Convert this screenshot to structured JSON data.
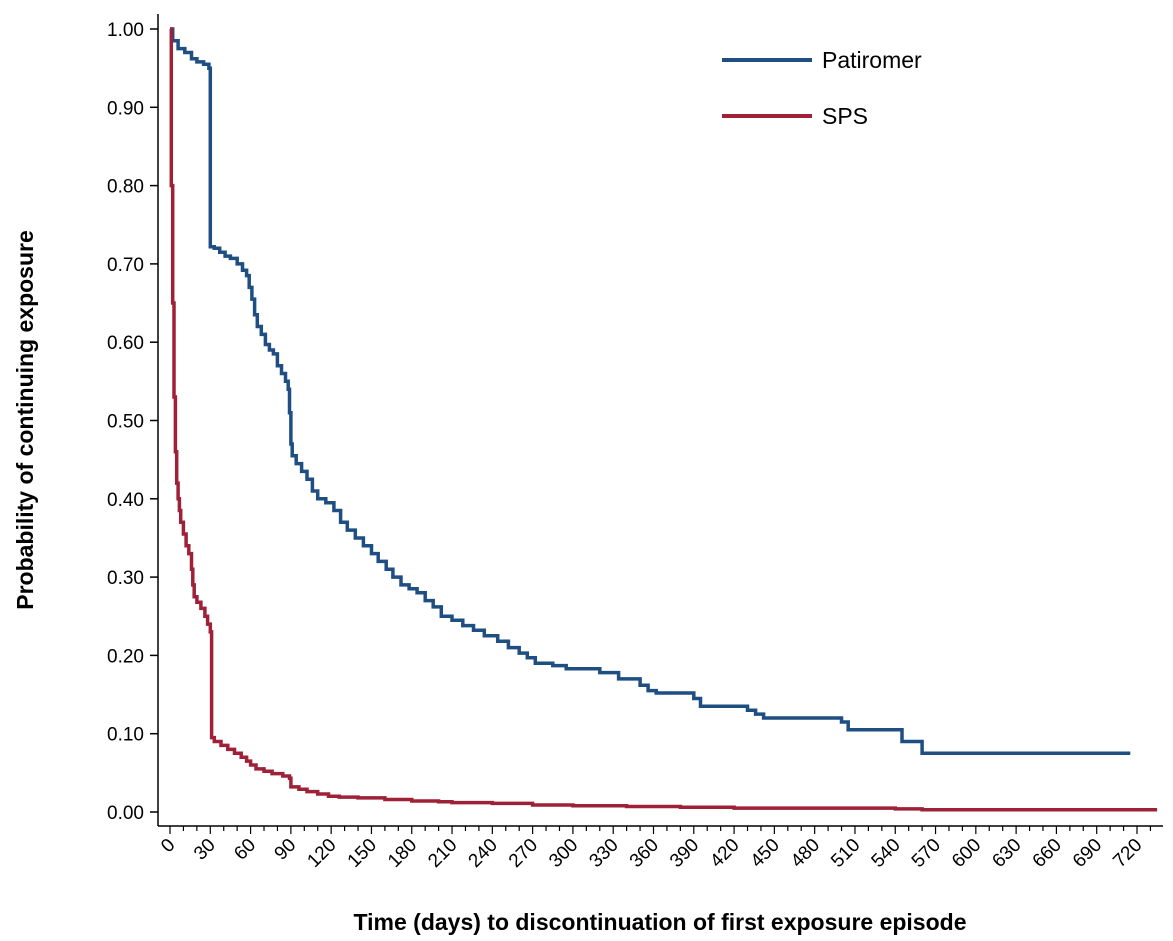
{
  "chart_data": {
    "type": "line",
    "title": "",
    "xlabel": "Time (days) to discontinuation of first exposure episode",
    "ylabel": "Probability of continuing exposure",
    "xlim": [
      -10,
      735
    ],
    "ylim": [
      0,
      1
    ],
    "x_ticks": [
      0,
      30,
      60,
      90,
      120,
      150,
      180,
      210,
      240,
      270,
      300,
      330,
      360,
      390,
      420,
      450,
      480,
      510,
      540,
      570,
      600,
      630,
      660,
      690,
      720
    ],
    "x_tick_labels": [
      "0",
      "30",
      "60",
      "90",
      "120",
      "150",
      "180",
      "210",
      "240",
      "270",
      "300",
      "330",
      "360",
      "390",
      "420",
      "450",
      "480",
      "510",
      "540",
      "570",
      "600",
      "630",
      "660",
      "690",
      "720"
    ],
    "y_ticks": [
      0,
      0.1,
      0.2,
      0.3,
      0.4,
      0.5,
      0.6,
      0.7,
      0.8,
      0.9,
      1.0
    ],
    "y_tick_labels": [
      "0.00",
      "0.10",
      "0.20",
      "0.30",
      "0.40",
      "0.50",
      "0.60",
      "0.70",
      "0.80",
      "0.90",
      "1.00"
    ],
    "grid": false,
    "legend_position": "top-right",
    "series": [
      {
        "name": "Patiromer",
        "color": "#1f4e82",
        "step": true,
        "points": [
          [
            0,
            1.0
          ],
          [
            2,
            0.985
          ],
          [
            6,
            0.975
          ],
          [
            11,
            0.97
          ],
          [
            16,
            0.962
          ],
          [
            20,
            0.958
          ],
          [
            25,
            0.955
          ],
          [
            29,
            0.95
          ],
          [
            30,
            0.722
          ],
          [
            33,
            0.72
          ],
          [
            37,
            0.715
          ],
          [
            41,
            0.71
          ],
          [
            45,
            0.707
          ],
          [
            50,
            0.7
          ],
          [
            54,
            0.692
          ],
          [
            57,
            0.685
          ],
          [
            59,
            0.67
          ],
          [
            61,
            0.655
          ],
          [
            63,
            0.635
          ],
          [
            65,
            0.62
          ],
          [
            68,
            0.61
          ],
          [
            71,
            0.597
          ],
          [
            74,
            0.59
          ],
          [
            77,
            0.585
          ],
          [
            80,
            0.57
          ],
          [
            83,
            0.56
          ],
          [
            86,
            0.55
          ],
          [
            88,
            0.54
          ],
          [
            89,
            0.51
          ],
          [
            90,
            0.47
          ],
          [
            91,
            0.455
          ],
          [
            94,
            0.445
          ],
          [
            98,
            0.435
          ],
          [
            102,
            0.425
          ],
          [
            106,
            0.41
          ],
          [
            110,
            0.4
          ],
          [
            116,
            0.395
          ],
          [
            122,
            0.385
          ],
          [
            127,
            0.37
          ],
          [
            132,
            0.36
          ],
          [
            138,
            0.35
          ],
          [
            144,
            0.34
          ],
          [
            150,
            0.33
          ],
          [
            155,
            0.32
          ],
          [
            161,
            0.31
          ],
          [
            166,
            0.3
          ],
          [
            172,
            0.29
          ],
          [
            178,
            0.285
          ],
          [
            184,
            0.28
          ],
          [
            190,
            0.27
          ],
          [
            196,
            0.262
          ],
          [
            202,
            0.25
          ],
          [
            210,
            0.245
          ],
          [
            218,
            0.238
          ],
          [
            226,
            0.232
          ],
          [
            234,
            0.225
          ],
          [
            244,
            0.218
          ],
          [
            252,
            0.21
          ],
          [
            260,
            0.203
          ],
          [
            266,
            0.197
          ],
          [
            272,
            0.19
          ],
          [
            285,
            0.187
          ],
          [
            295,
            0.183
          ],
          [
            320,
            0.178
          ],
          [
            334,
            0.17
          ],
          [
            350,
            0.162
          ],
          [
            356,
            0.155
          ],
          [
            362,
            0.152
          ],
          [
            390,
            0.145
          ],
          [
            395,
            0.135
          ],
          [
            430,
            0.13
          ],
          [
            436,
            0.125
          ],
          [
            442,
            0.12
          ],
          [
            500,
            0.115
          ],
          [
            505,
            0.105
          ],
          [
            545,
            0.09
          ],
          [
            560,
            0.075
          ],
          [
            715,
            0.075
          ]
        ]
      },
      {
        "name": "SPS",
        "color": "#9e2138",
        "step": true,
        "points": [
          [
            0,
            1.0
          ],
          [
            1,
            0.8
          ],
          [
            2,
            0.65
          ],
          [
            3,
            0.53
          ],
          [
            4,
            0.46
          ],
          [
            5,
            0.42
          ],
          [
            6,
            0.4
          ],
          [
            7,
            0.385
          ],
          [
            8,
            0.37
          ],
          [
            10,
            0.355
          ],
          [
            12,
            0.34
          ],
          [
            14,
            0.33
          ],
          [
            16,
            0.31
          ],
          [
            17,
            0.29
          ],
          [
            18,
            0.275
          ],
          [
            20,
            0.268
          ],
          [
            23,
            0.26
          ],
          [
            26,
            0.25
          ],
          [
            28,
            0.24
          ],
          [
            30,
            0.23
          ],
          [
            31,
            0.095
          ],
          [
            33,
            0.09
          ],
          [
            38,
            0.085
          ],
          [
            43,
            0.08
          ],
          [
            48,
            0.075
          ],
          [
            53,
            0.07
          ],
          [
            57,
            0.065
          ],
          [
            60,
            0.06
          ],
          [
            64,
            0.055
          ],
          [
            70,
            0.052
          ],
          [
            76,
            0.049
          ],
          [
            84,
            0.046
          ],
          [
            89,
            0.043
          ],
          [
            90,
            0.032
          ],
          [
            96,
            0.029
          ],
          [
            102,
            0.026
          ],
          [
            110,
            0.023
          ],
          [
            118,
            0.02
          ],
          [
            126,
            0.019
          ],
          [
            140,
            0.018
          ],
          [
            160,
            0.016
          ],
          [
            180,
            0.014
          ],
          [
            200,
            0.013
          ],
          [
            210,
            0.012
          ],
          [
            240,
            0.011
          ],
          [
            270,
            0.009
          ],
          [
            300,
            0.008
          ],
          [
            340,
            0.007
          ],
          [
            380,
            0.006
          ],
          [
            420,
            0.005
          ],
          [
            480,
            0.005
          ],
          [
            540,
            0.004
          ],
          [
            560,
            0.003
          ],
          [
            735,
            0.003
          ]
        ]
      }
    ]
  }
}
